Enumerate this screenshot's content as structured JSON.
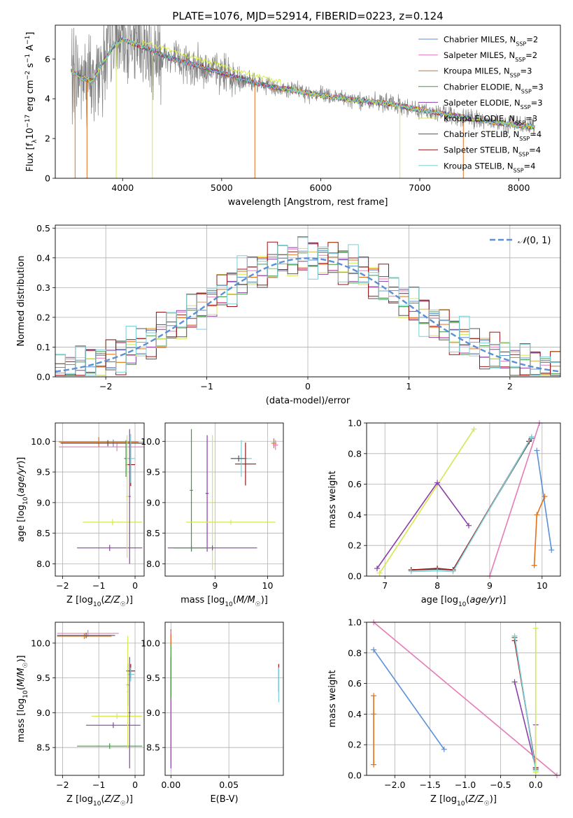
{
  "figure_title": "PLATE=1076, MJD=52914, FIBERID=0223, z=0.124",
  "colors": {
    "chabrier_miles": "#5b8fd6",
    "salpeter_miles": "#e47cb8",
    "kroupa_miles": "#e2701a",
    "chabrier_elodie": "#3f9a3f",
    "salpeter_elodie": "#8b3fa8",
    "kroupa_elodie": "#d5e84c",
    "chabrier_stelib": "#555555",
    "salpeter_stelib": "#9b1414",
    "kroupa_stelib": "#78cfd8"
  },
  "chart_data": [
    {
      "id": "spectrum",
      "type": "line",
      "xlabel": "wavelength [Angstrom, rest frame]",
      "ylabel": "Flux [f_λ10^-17 erg cm^-2 s^-1 A^-1]",
      "xlim": [
        3320,
        8420
      ],
      "ylim": [
        0,
        7.7
      ],
      "xticks": [
        4000,
        5000,
        6000,
        7000,
        8000
      ],
      "yticks": [
        0,
        2,
        4,
        6
      ],
      "grid": false,
      "legend": "top-right",
      "legend_entries": [
        {
          "name": "Chabrier MILES, N_SSP=2",
          "base": "Chabrier MILES, N",
          "sub": "SSP",
          "tail": "=2",
          "color": "chabrier_miles"
        },
        {
          "name": "Salpeter MILES, N_SSP=2",
          "base": "Salpeter MILES, N",
          "sub": "SSP",
          "tail": "=2",
          "color": "salpeter_miles"
        },
        {
          "name": "Kroupa MILES, N_SSP=3",
          "base": "Kroupa MILES, N",
          "sub": "SSP",
          "tail": "=3",
          "color": "kroupa_miles"
        },
        {
          "name": "Chabrier ELODIE, N_SSP=3",
          "base": "Chabrier ELODIE, N",
          "sub": "SSP",
          "tail": "=3",
          "color": "chabrier_elodie"
        },
        {
          "name": "Salpeter ELODIE, N_SSP=3",
          "base": "Salpeter ELODIE, N",
          "sub": "SSP",
          "tail": "=3",
          "color": "salpeter_elodie"
        },
        {
          "name": "Kroupa ELODIE, N_SSP=3",
          "base": "Kroupa ELODIE, N",
          "sub": "SSP",
          "tail": "=3",
          "color": "kroupa_elodie"
        },
        {
          "name": "Chabrier STELIB, N_SSP=4",
          "base": "Chabrier STELIB, N",
          "sub": "SSP",
          "tail": "=4",
          "color": "chabrier_stelib"
        },
        {
          "name": "Salpeter STELIB, N_SSP=4",
          "base": "Salpeter STELIB, N",
          "sub": "SSP",
          "tail": "=4",
          "color": "salpeter_stelib"
        },
        {
          "name": "Kroupa STELIB, N_SSP=4",
          "base": "Kroupa STELIB, N",
          "sub": "SSP",
          "tail": "=4",
          "color": "kroupa_stelib"
        }
      ],
      "continuum_model": {
        "wavelength": [
          3480,
          3600,
          3700,
          3800,
          3900,
          4000,
          4100,
          4300,
          4500,
          4700,
          4900,
          5100,
          5300,
          5500,
          5700,
          5900,
          6100,
          6300,
          6500,
          6700,
          6900,
          7100,
          7300,
          7500,
          7700,
          7900,
          8150
        ],
        "flux": [
          5.4,
          5.0,
          4.9,
          5.8,
          6.6,
          7.0,
          6.8,
          6.4,
          6.0,
          5.75,
          5.45,
          5.15,
          4.85,
          4.6,
          4.45,
          4.25,
          4.1,
          3.95,
          3.85,
          3.75,
          3.55,
          3.35,
          3.2,
          3.0,
          2.85,
          2.72,
          2.58
        ]
      },
      "absorption_features_model": [
        3520,
        3640,
        3935,
        4300,
        5335,
        6800,
        7440
      ]
    },
    {
      "id": "residuals",
      "type": "area",
      "xlabel": "(data-model)/error",
      "ylabel": "Normed distribution",
      "xlim": [
        -2.5,
        2.5
      ],
      "ylim": [
        0,
        0.51
      ],
      "xticks": [
        -2,
        -1,
        0,
        1,
        2
      ],
      "yticks": [
        0.0,
        0.1,
        0.2,
        0.3,
        0.4,
        0.5
      ],
      "grid": true,
      "legend": "top-right",
      "reference_curve": {
        "name": "N(0,1)",
        "mean": 0,
        "sigma": 1
      },
      "bin_width": 0.1,
      "bin_start": -2.5,
      "series_pattern": [
        0.02,
        -0.03,
        0.04,
        -0.01,
        0.05,
        -0.05,
        0.03,
        0.02,
        -0.04,
        0.06,
        -0.02
      ]
    },
    {
      "id": "age_vs_Z",
      "type": "scatter",
      "xlabel": "Z [log10(Z/Z☉)]",
      "ylabel": "age  [log10(age/yr)]",
      "xlim": [
        -2.2,
        0.25
      ],
      "ylim": [
        7.8,
        10.3
      ],
      "xticks": [
        -2,
        -1,
        0
      ],
      "yticks": [
        8.0,
        8.5,
        9.0,
        9.5,
        10.0
      ],
      "grid": true,
      "points": [
        {
          "x": -0.6,
          "y": 9.97,
          "xerr": 1.45,
          "yerr": 0.06,
          "color": "chabrier_miles"
        },
        {
          "x": -0.5,
          "y": 9.91,
          "xerr": 1.6,
          "yerr": 0.07,
          "color": "salpeter_miles"
        },
        {
          "x": -1.0,
          "y": 9.99,
          "xerr": 1.1,
          "yerr": 0.08,
          "color": "kroupa_miles"
        },
        {
          "x": -0.75,
          "y": 9.97,
          "xerr": 1.3,
          "yerr": 0.05,
          "color": "chabrier_stelib"
        },
        {
          "x": -0.25,
          "y": 9.72,
          "xerr": 0.05,
          "yerr": 0.3,
          "color": "chabrier_elodie"
        },
        {
          "x": -0.12,
          "y": 9.62,
          "xerr": 0.12,
          "yerr": 0.35,
          "color": "salpeter_stelib"
        },
        {
          "x": -0.12,
          "y": 9.72,
          "xerr": 0.12,
          "yerr": 0.4,
          "color": "kroupa_stelib"
        },
        {
          "x": -0.62,
          "y": 8.68,
          "xerr": 0.82,
          "yerr": 0.05,
          "color": "kroupa_elodie"
        },
        {
          "x": -0.7,
          "y": 8.26,
          "xerr": 0.9,
          "yerr": 0.05,
          "color": "salpeter_elodie"
        },
        {
          "x": -0.15,
          "y": 9.1,
          "xerr": 0.03,
          "yerr": 1.1,
          "color": "salpeter_elodie"
        },
        {
          "x": -0.22,
          "y": 9.1,
          "xerr": 0.03,
          "yerr": 1.0,
          "color": "kroupa_elodie"
        }
      ]
    },
    {
      "id": "age_vs_mass",
      "type": "scatter",
      "xlabel": "mass [log10(M/M☉)]",
      "ylabel": "",
      "xlim": [
        8.05,
        10.3
      ],
      "ylim": [
        7.8,
        10.3
      ],
      "xticks": [
        9,
        10
      ],
      "yticks": [
        8.0,
        8.5,
        9.0,
        9.5,
        10.0
      ],
      "grid": true,
      "points": [
        {
          "x": 8.55,
          "y": 9.2,
          "xerr": 0.03,
          "yerr": 1.0,
          "color": "chabrier_elodie"
        },
        {
          "x": 8.85,
          "y": 9.15,
          "xerr": 0.03,
          "yerr": 0.95,
          "color": "salpeter_elodie"
        },
        {
          "x": 8.95,
          "y": 9.0,
          "xerr": 0.03,
          "yerr": 1.1,
          "color": "kroupa_elodie"
        },
        {
          "x": 9.3,
          "y": 8.68,
          "xerr": 0.85,
          "yerr": 0.04,
          "color": "kroupa_elodie"
        },
        {
          "x": 8.95,
          "y": 8.26,
          "xerr": 0.85,
          "yerr": 0.04,
          "color": "salpeter_elodie"
        },
        {
          "x": 8.55,
          "y": 8.26,
          "xerr": 0.35,
          "yerr": 0.04,
          "color": "chabrier_elodie"
        },
        {
          "x": 9.58,
          "y": 9.63,
          "xerr": 0.2,
          "yerr": 0.35,
          "color": "salpeter_stelib"
        },
        {
          "x": 9.5,
          "y": 9.72,
          "xerr": 0.2,
          "yerr": 0.3,
          "color": "kroupa_stelib"
        },
        {
          "x": 9.45,
          "y": 9.72,
          "xerr": 0.15,
          "yerr": 0.05,
          "color": "chabrier_stelib"
        },
        {
          "x": 10.12,
          "y": 9.97,
          "xerr": 0.05,
          "yerr": 0.08,
          "color": "kroupa_miles"
        },
        {
          "x": 10.15,
          "y": 9.94,
          "xerr": 0.05,
          "yerr": 0.08,
          "color": "salpeter_miles"
        }
      ]
    },
    {
      "id": "weight_vs_age",
      "type": "line",
      "xlabel": "age  [log10(age/yr)]",
      "ylabel": "mass weight",
      "xlim": [
        6.65,
        10.35
      ],
      "ylim": [
        0,
        1
      ],
      "xticks": [
        7,
        8,
        9,
        10
      ],
      "yticks": [
        0.0,
        0.2,
        0.4,
        0.6,
        0.8,
        1.0
      ],
      "grid": true,
      "series": [
        {
          "color": "kroupa_elodie",
          "x": [
            6.9,
            8.7
          ],
          "y": [
            0.02,
            0.96
          ]
        },
        {
          "color": "salpeter_elodie",
          "x": [
            6.85,
            8.0,
            8.6
          ],
          "y": [
            0.05,
            0.61,
            0.33
          ]
        },
        {
          "color": "chabrier_stelib",
          "x": [
            7.5,
            8.0,
            8.3,
            9.8
          ],
          "y": [
            0.04,
            0.045,
            0.04,
            0.9
          ]
        },
        {
          "color": "salpeter_stelib",
          "x": [
            7.5,
            8.0,
            8.3,
            9.75
          ],
          "y": [
            0.04,
            0.05,
            0.04,
            0.88
          ]
        },
        {
          "color": "kroupa_stelib",
          "x": [
            7.5,
            8.0,
            8.3,
            9.8
          ],
          "y": [
            0.03,
            0.035,
            0.03,
            0.91
          ]
        },
        {
          "color": "salpeter_miles",
          "x": [
            9.0,
            9.95
          ],
          "y": [
            0.0,
            1.0
          ]
        },
        {
          "color": "kroupa_miles",
          "x": [
            9.85,
            9.9,
            10.05
          ],
          "y": [
            0.07,
            0.4,
            0.52
          ]
        },
        {
          "color": "chabrier_miles",
          "x": [
            9.9,
            10.18
          ],
          "y": [
            0.82,
            0.17
          ]
        }
      ]
    },
    {
      "id": "mass_vs_Z",
      "type": "scatter",
      "xlabel": "Z [log10(Z/Z☉)]",
      "ylabel": "mass [log10(M/M☉)]",
      "xlim": [
        -2.2,
        0.25
      ],
      "ylim": [
        8.1,
        10.3
      ],
      "xticks": [
        -2,
        -1,
        0
      ],
      "yticks": [
        8.5,
        9.0,
        9.5,
        10.0
      ],
      "grid": true,
      "points": [
        {
          "x": -1.3,
          "y": 10.14,
          "xerr": 0.85,
          "yerr": 0.05,
          "color": "salpeter_miles"
        },
        {
          "x": -1.4,
          "y": 10.1,
          "xerr": 0.75,
          "yerr": 0.04,
          "color": "kroupa_miles"
        },
        {
          "x": -1.35,
          "y": 10.11,
          "xerr": 0.8,
          "yerr": 0.04,
          "color": "chabrier_stelib"
        },
        {
          "x": -0.2,
          "y": 9.4,
          "xerr": 0.03,
          "yerr": 0.3,
          "color": "chabrier_elodie"
        },
        {
          "x": -0.12,
          "y": 9.6,
          "xerr": 0.12,
          "yerr": 0.1,
          "color": "salpeter_stelib"
        },
        {
          "x": -0.12,
          "y": 9.55,
          "xerr": 0.1,
          "yerr": 0.1,
          "color": "kroupa_stelib"
        },
        {
          "x": -0.5,
          "y": 8.95,
          "xerr": 0.7,
          "yerr": 0.04,
          "color": "kroupa_elodie"
        },
        {
          "x": -0.6,
          "y": 8.82,
          "xerr": 0.75,
          "yerr": 0.04,
          "color": "salpeter_elodie"
        },
        {
          "x": -0.7,
          "y": 8.52,
          "xerr": 0.9,
          "yerr": 0.04,
          "color": "chabrier_elodie"
        },
        {
          "x": -0.15,
          "y": 9.0,
          "xerr": 0.03,
          "yerr": 0.8,
          "color": "salpeter_elodie"
        },
        {
          "x": -0.2,
          "y": 9.3,
          "xerr": 0.03,
          "yerr": 0.8,
          "color": "kroupa_elodie"
        }
      ]
    },
    {
      "id": "mass_vs_ebv",
      "type": "scatter",
      "xlabel": "E(B-V)",
      "ylabel": "",
      "xlim": [
        -0.005,
        0.097
      ],
      "ylim": [
        8.1,
        10.3
      ],
      "xticks": [
        0.0,
        0.05
      ],
      "yticks": [
        8.5,
        9.0,
        9.5,
        10.0
      ],
      "grid": true,
      "points": [
        {
          "x": 0.0,
          "y": 9.2,
          "xerr": 0.0,
          "yerr": 0.9,
          "color": "kroupa_elodie"
        },
        {
          "x": 0.0,
          "y": 9.0,
          "xerr": 0.0,
          "yerr": 0.8,
          "color": "salpeter_elodie"
        },
        {
          "x": 0.0,
          "y": 9.7,
          "xerr": 0.0,
          "yerr": 0.5,
          "color": "chabrier_elodie"
        },
        {
          "x": 0.0,
          "y": 10.1,
          "xerr": 0.0,
          "yerr": 0.08,
          "color": "salpeter_miles"
        },
        {
          "x": 0.0,
          "y": 10.05,
          "xerr": 0.0,
          "yerr": 0.08,
          "color": "kroupa_miles"
        },
        {
          "x": 0.093,
          "y": 9.5,
          "xerr": 0.0,
          "yerr": 0.2,
          "color": "salpeter_stelib"
        },
        {
          "x": 0.093,
          "y": 9.4,
          "xerr": 0.0,
          "yerr": 0.25,
          "color": "kroupa_stelib"
        }
      ]
    },
    {
      "id": "weight_vs_Z",
      "type": "line",
      "xlabel": "Z [log10(Z/Z☉)]",
      "ylabel": "mass weight",
      "xlim": [
        -2.4,
        0.35
      ],
      "ylim": [
        0,
        1
      ],
      "xticks": [
        -2.0,
        -1.5,
        -1.0,
        -0.5,
        0.0
      ],
      "yticks": [
        0.0,
        0.2,
        0.4,
        0.6,
        0.8,
        1.0
      ],
      "grid": true,
      "series": [
        {
          "color": "salpeter_miles",
          "x": [
            -2.3,
            0.3
          ],
          "y": [
            1.0,
            0.0
          ]
        },
        {
          "color": "chabrier_miles",
          "x": [
            -2.3,
            -1.3
          ],
          "y": [
            0.82,
            0.17
          ]
        },
        {
          "color": "kroupa_miles",
          "x": [
            -2.3,
            -2.3,
            -2.3
          ],
          "y": [
            0.07,
            0.4,
            0.52
          ]
        },
        {
          "color": "salpeter_elodie",
          "x": [
            -0.3,
            0.0,
            0.0
          ],
          "y": [
            0.61,
            0.05,
            0.33
          ]
        },
        {
          "color": "chabrier_stelib",
          "x": [
            -0.3,
            0.0
          ],
          "y": [
            0.9,
            0.04
          ]
        },
        {
          "color": "salpeter_stelib",
          "x": [
            -0.3,
            0.0
          ],
          "y": [
            0.88,
            0.05
          ]
        },
        {
          "color": "kroupa_stelib",
          "x": [
            -0.3,
            0.0
          ],
          "y": [
            0.91,
            0.03
          ]
        },
        {
          "color": "kroupa_elodie",
          "x": [
            0.0,
            0.0
          ],
          "y": [
            0.96,
            0.02
          ]
        }
      ]
    }
  ]
}
